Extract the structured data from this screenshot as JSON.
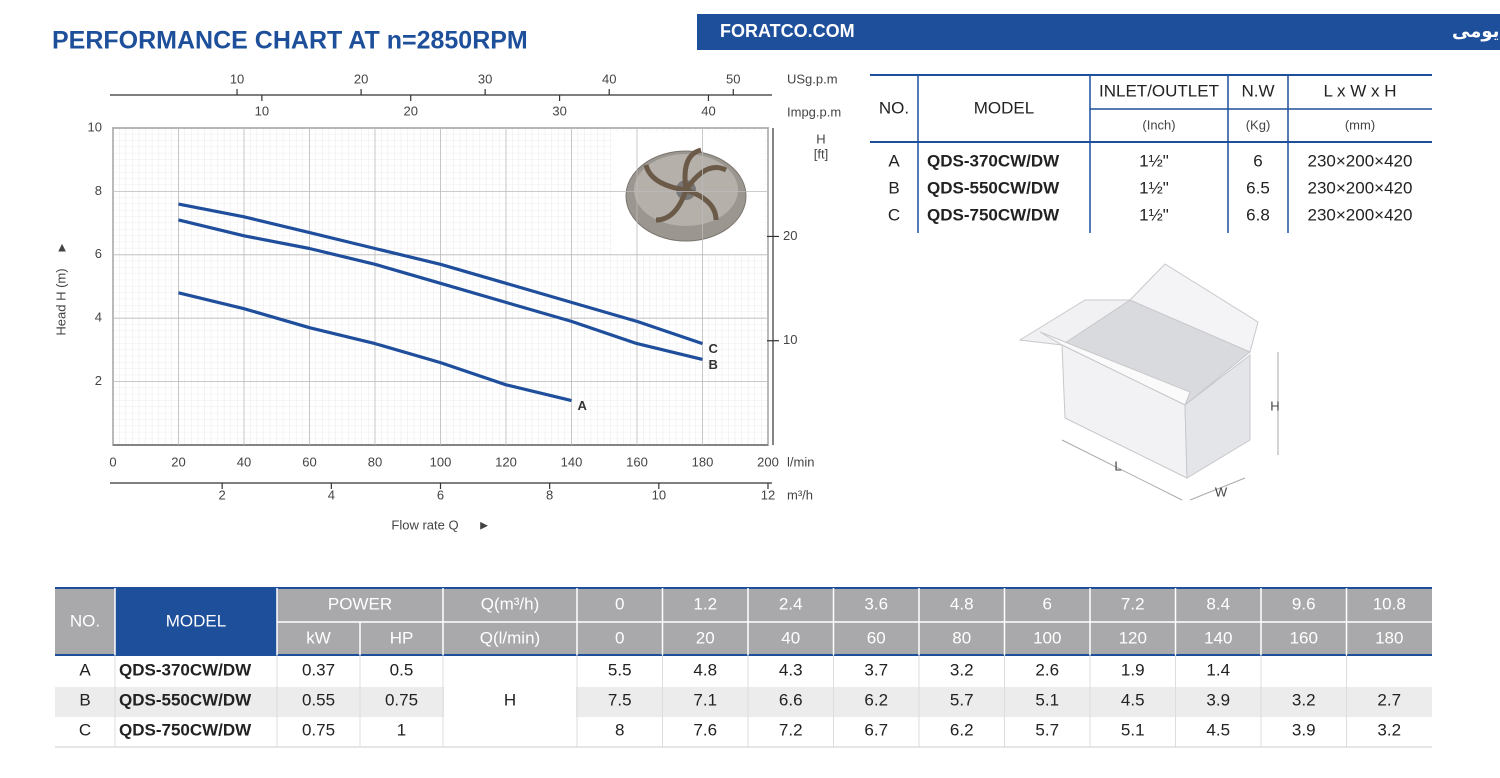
{
  "header": {
    "title": "PERFORMANCE CHART AT n=2850RPM",
    "banner_fa": "شرکت فرات واردکننده انحصاری و مرکز پخش انواع پمپ‌های یومی",
    "banner_site": "FORATCO.COM"
  },
  "chart": {
    "type": "line",
    "y_label": "Head H (m)",
    "x_label": "Flow rate Q",
    "xlim": [
      0,
      200
    ],
    "xticks": [
      0,
      20,
      40,
      60,
      80,
      100,
      120,
      140,
      160,
      180,
      200
    ],
    "x_unit": "l/min",
    "ylim": [
      0,
      10
    ],
    "yticks": [
      2,
      4,
      6,
      8,
      10
    ],
    "x2lim": [
      0,
      12
    ],
    "x2ticks": [
      2,
      4,
      6,
      8,
      10,
      12
    ],
    "x2_unit": "m³/h",
    "x3lim": [
      0,
      52.8
    ],
    "x3ticks": [
      10,
      20,
      30,
      40,
      50
    ],
    "x3_unit": "USg.p.m",
    "x4lim": [
      0,
      44
    ],
    "x4ticks": [
      10,
      20,
      30,
      40
    ],
    "x4_unit": "Impg.p.m",
    "y2lim": [
      0,
      30.4
    ],
    "y2ticks": [
      10,
      20
    ],
    "y2_unit": "H",
    "y2_unit2": "[ft]",
    "grid": true,
    "series": [
      {
        "name": "A",
        "color": "#1f4e9c",
        "x": [
          20,
          40,
          60,
          80,
          100,
          120,
          140
        ],
        "values": [
          4.8,
          4.3,
          3.7,
          3.2,
          2.6,
          1.9,
          1.4
        ]
      },
      {
        "name": "B",
        "color": "#1f4e9c",
        "x": [
          20,
          40,
          60,
          80,
          100,
          120,
          140,
          160,
          180
        ],
        "values": [
          7.1,
          6.6,
          6.2,
          5.7,
          5.1,
          4.5,
          3.9,
          3.2,
          2.7
        ]
      },
      {
        "name": "C",
        "color": "#1f4e9c",
        "x": [
          20,
          40,
          60,
          80,
          100,
          120,
          140,
          160,
          180
        ],
        "values": [
          7.6,
          7.2,
          6.7,
          6.2,
          5.7,
          5.1,
          4.5,
          3.9,
          3.2
        ]
      }
    ]
  },
  "spec_table": {
    "header": {
      "no": "NO.",
      "model": "MODEL",
      "inlet": "INLET/OUTLET",
      "inlet_unit": "(Inch)",
      "nw": "N.W",
      "nw_unit": "(Kg)",
      "dims": "L x W x H",
      "dims_unit": "(mm)"
    },
    "rows": [
      {
        "no": "A",
        "model": "QDS-370CW/DW",
        "inlet": "1½\"",
        "nw": 6,
        "dims": "230×200×420"
      },
      {
        "no": "B",
        "model": "QDS-550CW/DW",
        "inlet": "1½\"",
        "nw": 6.5,
        "dims": "230×200×420"
      },
      {
        "no": "C",
        "model": "QDS-750CW/DW",
        "inlet": "1½\"",
        "nw": 6.8,
        "dims": "230×200×420"
      }
    ]
  },
  "box": {
    "h": "H",
    "l": "L",
    "w": "W"
  },
  "perf_table": {
    "header": {
      "no": "NO.",
      "model": "MODEL",
      "power": "POWER",
      "kw": "kW",
      "hp": "HP",
      "q_m3h": "Q(m³/h)",
      "q_lmin": "Q(l/min)",
      "flows_m3h": [
        0,
        1.2,
        2.4,
        3.6,
        4.8,
        6,
        7.2,
        8.4,
        9.6,
        10.8
      ],
      "flows_lmin": [
        0,
        20,
        40,
        60,
        80,
        100,
        120,
        140,
        160,
        180
      ]
    },
    "h_label": "H",
    "rows": [
      {
        "no": "A",
        "model": "QDS-370CW/DW",
        "kw": 0.37,
        "hp": 0.5,
        "heads": [
          5.5,
          4.8,
          4.3,
          3.7,
          3.2,
          2.6,
          1.9,
          1.4
        ]
      },
      {
        "no": "B",
        "model": "QDS-550CW/DW",
        "kw": 0.55,
        "hp": 0.75,
        "heads": [
          7.5,
          7.1,
          6.6,
          6.2,
          5.7,
          5.1,
          4.5,
          3.9,
          3.2,
          2.7
        ]
      },
      {
        "no": "C",
        "model": "QDS-750CW/DW",
        "kw": 0.75,
        "hp": 1,
        "heads": [
          8,
          7.6,
          7.2,
          6.7,
          6.2,
          5.7,
          5.1,
          4.5,
          3.9,
          3.2
        ]
      }
    ]
  }
}
